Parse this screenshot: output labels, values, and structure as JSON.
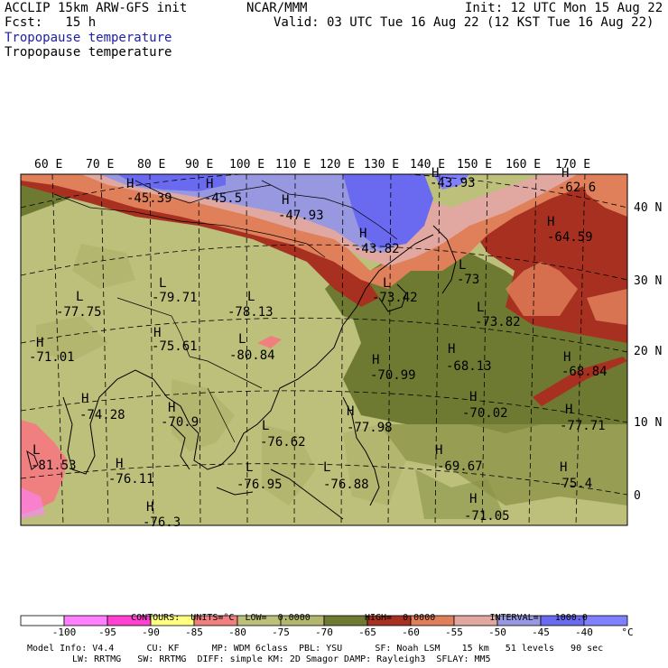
{
  "header": {
    "model": "ACCLIP 15km ARW-GFS init",
    "fcst": "Fcst:   15 h",
    "org": "NCAR/MMM",
    "init": "Init: 12 UTC Mon 15 Aug 22",
    "valid": "Valid: 03 UTC Tue 16 Aug 22 (12 KST Tue 16 Aug 22)",
    "field_title_1": "Tropopause temperature",
    "field_title_2": "Tropopause temperature"
  },
  "lon_labels": [
    "60 E",
    "70 E",
    "80 E",
    "90 E",
    "100 E",
    "110 E",
    "120 E",
    "130 E",
    "140 E",
    "150 E",
    "160 E",
    "170 E"
  ],
  "lat_labels": [
    "40 N",
    "30 N",
    "20 N",
    "10 N",
    "0"
  ],
  "extrema": [
    {
      "type": "H",
      "value": "-45.39"
    },
    {
      "type": "H",
      "value": "-45.5"
    },
    {
      "type": "H",
      "value": "-47.93"
    },
    {
      "type": "H",
      "value": "-43.93"
    },
    {
      "type": "H",
      "value": "-62.6"
    },
    {
      "type": "H",
      "value": "-43.82"
    },
    {
      "type": "H",
      "value": "-64.59"
    },
    {
      "type": "L",
      "value": "-73"
    },
    {
      "type": "L",
      "value": "-79.71"
    },
    {
      "type": "L",
      "value": "-78.13"
    },
    {
      "type": "L",
      "value": "-77.75"
    },
    {
      "type": "L",
      "value": "-73.42"
    },
    {
      "type": "L",
      "value": "-73.82"
    },
    {
      "type": "H",
      "value": "-75.61"
    },
    {
      "type": "L",
      "value": "-80.84"
    },
    {
      "type": "H",
      "value": "-71.01"
    },
    {
      "type": "H",
      "value": "-70.99"
    },
    {
      "type": "H",
      "value": "-68.13"
    },
    {
      "type": "H",
      "value": "-68.84"
    },
    {
      "type": "H",
      "value": "-74.28"
    },
    {
      "type": "H",
      "value": "-70.9"
    },
    {
      "type": "H",
      "value": "-70.02"
    },
    {
      "type": "H",
      "value": "-77.98"
    },
    {
      "type": "H",
      "value": "-77.71"
    },
    {
      "type": "L",
      "value": "-76.62"
    },
    {
      "type": "L",
      "value": "-81.53"
    },
    {
      "type": "H",
      "value": "-76.11"
    },
    {
      "type": "H",
      "value": "-69.67"
    },
    {
      "type": "H",
      "value": "-75.4"
    },
    {
      "type": "L",
      "value": "-76.95"
    },
    {
      "type": "L",
      "value": "-76.88"
    },
    {
      "type": "H",
      "value": "-71.05"
    },
    {
      "type": "H",
      "value": "-76.3"
    }
  ],
  "contour_info": {
    "contours": "CONTOURS:",
    "units": "UNITS=°C",
    "low": "LOW=  0.0000",
    "high": "HIGH=  0.0000",
    "interval": "INTERVAL=   1000.0"
  },
  "legend": {
    "colors": [
      "#ffffff",
      "#ff80ff",
      "#ff40d0",
      "#ffff80",
      "#f08080",
      "#bcc07a",
      "#b3b66e",
      "#6e7a32",
      "#a83020",
      "#e0805a",
      "#e0a8a0",
      "#9898e0",
      "#6a6af0",
      "#8080ff"
    ],
    "labels": [
      "-100",
      "-95",
      "-90",
      "-85",
      "-80",
      "-75",
      "-70",
      "-65",
      "-60",
      "-55",
      "-50",
      "-45",
      "-40"
    ],
    "unit": "°C"
  },
  "footer": {
    "line1": "Model Info: V4.4      CU: KF      MP: WDM 6class  PBL: YSU      SF: Noah LSM    15 km   51 levels   90 sec",
    "line2": "LW: RRTMG   SW: RRTMG  DIFF: simple KM: 2D Smagor DAMP: Rayleigh3  SFLAY: MM5"
  }
}
